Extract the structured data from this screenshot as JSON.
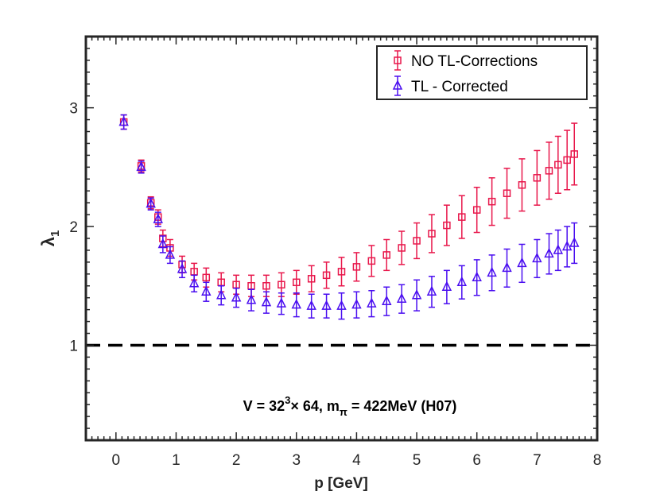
{
  "chart_data": {
    "type": "scatter",
    "xlabel": "p [GeV]",
    "ylabel": "λ",
    "ylabel_sub": "1",
    "xlim": [
      -0.5,
      8
    ],
    "ylim": [
      0.2,
      3.6
    ],
    "xticks": [
      {
        "value": 0,
        "label": "0"
      },
      {
        "value": 1,
        "label": "1"
      },
      {
        "value": 2,
        "label": "2"
      },
      {
        "value": 3,
        "label": "3"
      },
      {
        "value": 4,
        "label": "4"
      },
      {
        "value": 5,
        "label": "5"
      },
      {
        "value": 6,
        "label": "6"
      },
      {
        "value": 7,
        "label": "7"
      },
      {
        "value": 8,
        "label": "8"
      }
    ],
    "yticks": [
      {
        "value": 1,
        "label": "1"
      },
      {
        "value": 2,
        "label": "2"
      },
      {
        "value": 3,
        "label": "3"
      }
    ],
    "reference_line": {
      "y": 1,
      "style": "dashed",
      "color": "#000000"
    },
    "legend": {
      "placement": "top-right"
    },
    "annotation": {
      "v_label": "V = 32",
      "v_sup": "3",
      "times_label": "× 64, m",
      "m_sub": "π",
      "rest_label": " = 422MeV (H07)"
    },
    "series": [
      {
        "name": "NO TL-Corrections",
        "color": "#e8174b",
        "marker": "square",
        "points": [
          {
            "x": 0.13,
            "y": 2.88,
            "err": 0.06
          },
          {
            "x": 0.42,
            "y": 2.51,
            "err": 0.05
          },
          {
            "x": 0.58,
            "y": 2.2,
            "err": 0.05
          },
          {
            "x": 0.7,
            "y": 2.08,
            "err": 0.06
          },
          {
            "x": 0.78,
            "y": 1.9,
            "err": 0.07
          },
          {
            "x": 0.9,
            "y": 1.82,
            "err": 0.07
          },
          {
            "x": 1.1,
            "y": 1.68,
            "err": 0.07
          },
          {
            "x": 1.3,
            "y": 1.62,
            "err": 0.07
          },
          {
            "x": 1.5,
            "y": 1.57,
            "err": 0.08
          },
          {
            "x": 1.75,
            "y": 1.53,
            "err": 0.08
          },
          {
            "x": 2.0,
            "y": 1.51,
            "err": 0.08
          },
          {
            "x": 2.25,
            "y": 1.5,
            "err": 0.09
          },
          {
            "x": 2.5,
            "y": 1.5,
            "err": 0.09
          },
          {
            "x": 2.75,
            "y": 1.51,
            "err": 0.1
          },
          {
            "x": 3.0,
            "y": 1.53,
            "err": 0.1
          },
          {
            "x": 3.25,
            "y": 1.56,
            "err": 0.11
          },
          {
            "x": 3.5,
            "y": 1.59,
            "err": 0.11
          },
          {
            "x": 3.75,
            "y": 1.62,
            "err": 0.12
          },
          {
            "x": 4.0,
            "y": 1.66,
            "err": 0.12
          },
          {
            "x": 4.25,
            "y": 1.71,
            "err": 0.13
          },
          {
            "x": 4.5,
            "y": 1.76,
            "err": 0.13
          },
          {
            "x": 4.75,
            "y": 1.82,
            "err": 0.14
          },
          {
            "x": 5.0,
            "y": 1.88,
            "err": 0.15
          },
          {
            "x": 5.25,
            "y": 1.94,
            "err": 0.16
          },
          {
            "x": 5.5,
            "y": 2.01,
            "err": 0.17
          },
          {
            "x": 5.75,
            "y": 2.08,
            "err": 0.18
          },
          {
            "x": 6.0,
            "y": 2.14,
            "err": 0.19
          },
          {
            "x": 6.25,
            "y": 2.21,
            "err": 0.2
          },
          {
            "x": 6.5,
            "y": 2.28,
            "err": 0.21
          },
          {
            "x": 6.75,
            "y": 2.35,
            "err": 0.22
          },
          {
            "x": 7.0,
            "y": 2.41,
            "err": 0.23
          },
          {
            "x": 7.2,
            "y": 2.47,
            "err": 0.24
          },
          {
            "x": 7.35,
            "y": 2.52,
            "err": 0.24
          },
          {
            "x": 7.5,
            "y": 2.56,
            "err": 0.25
          },
          {
            "x": 7.62,
            "y": 2.61,
            "err": 0.26
          }
        ]
      },
      {
        "name": "TL - Corrected",
        "color": "#4a0ef0",
        "marker": "triangle",
        "points": [
          {
            "x": 0.13,
            "y": 2.88,
            "err": 0.06
          },
          {
            "x": 0.42,
            "y": 2.5,
            "err": 0.05
          },
          {
            "x": 0.58,
            "y": 2.19,
            "err": 0.05
          },
          {
            "x": 0.7,
            "y": 2.06,
            "err": 0.06
          },
          {
            "x": 0.78,
            "y": 1.85,
            "err": 0.07
          },
          {
            "x": 0.9,
            "y": 1.76,
            "err": 0.07
          },
          {
            "x": 1.1,
            "y": 1.64,
            "err": 0.07
          },
          {
            "x": 1.3,
            "y": 1.52,
            "err": 0.07
          },
          {
            "x": 1.5,
            "y": 1.45,
            "err": 0.08
          },
          {
            "x": 1.75,
            "y": 1.42,
            "err": 0.08
          },
          {
            "x": 2.0,
            "y": 1.4,
            "err": 0.08
          },
          {
            "x": 2.25,
            "y": 1.38,
            "err": 0.09
          },
          {
            "x": 2.5,
            "y": 1.36,
            "err": 0.09
          },
          {
            "x": 2.75,
            "y": 1.35,
            "err": 0.09
          },
          {
            "x": 3.0,
            "y": 1.34,
            "err": 0.1
          },
          {
            "x": 3.25,
            "y": 1.33,
            "err": 0.1
          },
          {
            "x": 3.5,
            "y": 1.33,
            "err": 0.1
          },
          {
            "x": 3.75,
            "y": 1.33,
            "err": 0.11
          },
          {
            "x": 4.0,
            "y": 1.34,
            "err": 0.11
          },
          {
            "x": 4.25,
            "y": 1.35,
            "err": 0.11
          },
          {
            "x": 4.5,
            "y": 1.37,
            "err": 0.12
          },
          {
            "x": 4.75,
            "y": 1.39,
            "err": 0.12
          },
          {
            "x": 5.0,
            "y": 1.42,
            "err": 0.13
          },
          {
            "x": 5.25,
            "y": 1.45,
            "err": 0.13
          },
          {
            "x": 5.5,
            "y": 1.49,
            "err": 0.14
          },
          {
            "x": 5.75,
            "y": 1.53,
            "err": 0.14
          },
          {
            "x": 6.0,
            "y": 1.57,
            "err": 0.15
          },
          {
            "x": 6.25,
            "y": 1.61,
            "err": 0.15
          },
          {
            "x": 6.5,
            "y": 1.65,
            "err": 0.16
          },
          {
            "x": 6.75,
            "y": 1.69,
            "err": 0.16
          },
          {
            "x": 7.0,
            "y": 1.73,
            "err": 0.16
          },
          {
            "x": 7.2,
            "y": 1.77,
            "err": 0.17
          },
          {
            "x": 7.35,
            "y": 1.8,
            "err": 0.17
          },
          {
            "x": 7.5,
            "y": 1.83,
            "err": 0.17
          },
          {
            "x": 7.62,
            "y": 1.86,
            "err": 0.17
          }
        ]
      }
    ]
  }
}
